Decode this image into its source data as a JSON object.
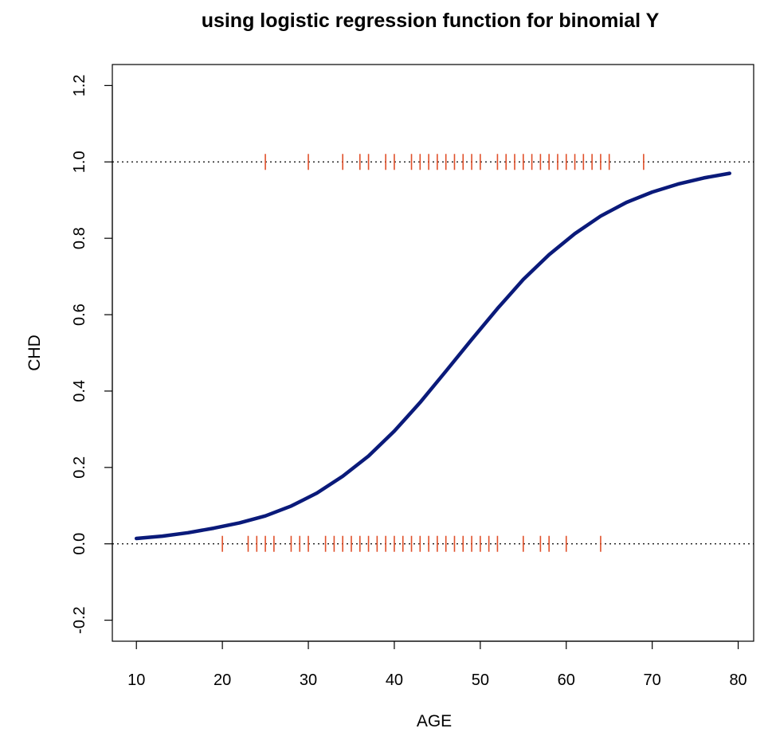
{
  "chart_data": {
    "type": "line",
    "title": "using logistic regression function for binomial Y",
    "xlabel": "AGE",
    "ylabel": "CHD",
    "xlim": [
      7.2,
      81.8
    ],
    "ylim": [
      -0.255,
      1.255
    ],
    "x_ticks": [
      10,
      20,
      30,
      40,
      50,
      60,
      70,
      80
    ],
    "x_tick_labels": [
      "10",
      "20",
      "30",
      "40",
      "50",
      "60",
      "70",
      "80"
    ],
    "y_ticks": [
      -0.2,
      0.0,
      0.2,
      0.4,
      0.6,
      0.8,
      1.0,
      1.2
    ],
    "y_tick_labels": [
      "-0.2",
      "0.0",
      "0.2",
      "0.4",
      "0.6",
      "0.8",
      "1.0",
      "1.2"
    ],
    "reference_lines": [
      0,
      1
    ],
    "grid": false,
    "series": [
      {
        "color": "#0a1a7a",
        "x": [
          10,
          13,
          16,
          19,
          22,
          25,
          28,
          31,
          34,
          37,
          40,
          43,
          46,
          49,
          52,
          55,
          58,
          61,
          64,
          67,
          70,
          73,
          76,
          79
        ],
        "y": [
          0.014,
          0.02,
          0.029,
          0.041,
          0.055,
          0.073,
          0.099,
          0.133,
          0.177,
          0.23,
          0.295,
          0.37,
          0.452,
          0.535,
          0.616,
          0.692,
          0.757,
          0.812,
          0.858,
          0.894,
          0.921,
          0.942,
          0.958,
          0.97
        ]
      }
    ],
    "rug": {
      "color": "#e0502a",
      "y1_ages": [
        25,
        30,
        34,
        36,
        37,
        39,
        40,
        42,
        43,
        44,
        45,
        46,
        47,
        48,
        49,
        50,
        52,
        53,
        54,
        55,
        56,
        57,
        58,
        59,
        60,
        61,
        62,
        63,
        64,
        65,
        69
      ],
      "y0_ages": [
        20,
        23,
        24,
        25,
        26,
        28,
        29,
        30,
        32,
        33,
        34,
        35,
        36,
        37,
        38,
        39,
        40,
        41,
        42,
        43,
        44,
        45,
        46,
        47,
        48,
        49,
        50,
        51,
        52,
        55,
        57,
        58,
        60,
        64
      ]
    }
  }
}
